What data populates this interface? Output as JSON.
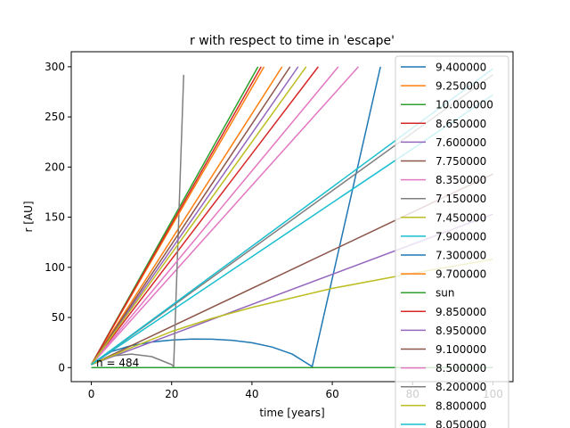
{
  "chart_data": {
    "type": "line",
    "title": "r with respect to time in 'escape'",
    "xlabel": "time [years]",
    "ylabel": "r [AU]",
    "xlim": [
      -5,
      105
    ],
    "ylim": [
      -14,
      315
    ],
    "xticks": [
      0,
      20,
      40,
      60,
      80,
      100
    ],
    "yticks": [
      0,
      50,
      100,
      150,
      200,
      250,
      300
    ],
    "grid": false,
    "legend": "right",
    "annotation": {
      "text": "n = 484",
      "x": 1,
      "y": 3
    },
    "series": [
      {
        "name": "9.400000",
        "color": "#1f77b4",
        "x": [
          0,
          5,
          10,
          15,
          20,
          25,
          30,
          35,
          40,
          45,
          50,
          55,
          72
        ],
        "y": [
          3,
          16,
          22,
          25.5,
          27.5,
          28.5,
          28.3,
          27.2,
          24.8,
          20.5,
          13.5,
          1,
          300
        ]
      },
      {
        "name": "9.250000",
        "color": "#ff7f0e",
        "x": [
          0,
          47.5
        ],
        "y": [
          3,
          300
        ]
      },
      {
        "name": "10.000000",
        "color": "#2ca02c",
        "x": [
          0,
          41.5
        ],
        "y": [
          3,
          300
        ]
      },
      {
        "name": "8.650000",
        "color": "#d62728",
        "x": [
          0,
          56.5
        ],
        "y": [
          3,
          300
        ]
      },
      {
        "name": "7.600000",
        "color": "#9467bd",
        "x": [
          0,
          100
        ],
        "y": [
          3,
          153
        ]
      },
      {
        "name": "7.750000",
        "color": "#8c564b",
        "x": [
          0,
          100
        ],
        "y": [
          3,
          193
        ]
      },
      {
        "name": "8.350000",
        "color": "#e377c2",
        "x": [
          0,
          66.5
        ],
        "y": [
          3,
          300
        ]
      },
      {
        "name": "7.150000",
        "color": "#7f7f7f",
        "x": [
          0,
          5,
          10,
          15,
          20,
          20.5,
          23
        ],
        "y": [
          3,
          11.5,
          13.5,
          11,
          3,
          1,
          292
        ]
      },
      {
        "name": "7.450000",
        "color": "#bcbd22",
        "x": [
          0,
          10,
          20,
          30,
          40,
          60,
          80,
          100
        ],
        "y": [
          3,
          20,
          36,
          49,
          60,
          79,
          94,
          108
        ]
      },
      {
        "name": "7.900000",
        "color": "#17becf",
        "x": [
          0,
          100
        ],
        "y": [
          3,
          272
        ]
      },
      {
        "name": "7.300000",
        "color": "#1f77b4",
        "x": [],
        "y": []
      },
      {
        "name": "9.700000",
        "color": "#ff7f0e",
        "x": [
          0,
          43
        ],
        "y": [
          3,
          300
        ]
      },
      {
        "name": "sun",
        "color": "#2ca02c",
        "x": [
          0,
          100
        ],
        "y": [
          0,
          0
        ]
      },
      {
        "name": "9.850000",
        "color": "#d62728",
        "x": [
          0,
          42.3
        ],
        "y": [
          3,
          300
        ]
      },
      {
        "name": "8.950000",
        "color": "#9467bd",
        "x": [
          0,
          51.5
        ],
        "y": [
          3,
          300
        ]
      },
      {
        "name": "9.100000",
        "color": "#8c564b",
        "x": [
          0,
          49.5
        ],
        "y": [
          3,
          300
        ]
      },
      {
        "name": "8.500000",
        "color": "#e377c2",
        "x": [
          0,
          61.5
        ],
        "y": [
          3,
          300
        ]
      },
      {
        "name": "8.200000",
        "color": "#7f7f7f",
        "x": [
          0,
          100
        ],
        "y": [
          3,
          292
        ]
      },
      {
        "name": "8.800000",
        "color": "#bcbd22",
        "x": [
          0,
          53.5
        ],
        "y": [
          3,
          300
        ]
      },
      {
        "name": "8.050000",
        "color": "#17becf",
        "x": [
          0,
          100
        ],
        "y": [
          3,
          298
        ]
      }
    ]
  }
}
